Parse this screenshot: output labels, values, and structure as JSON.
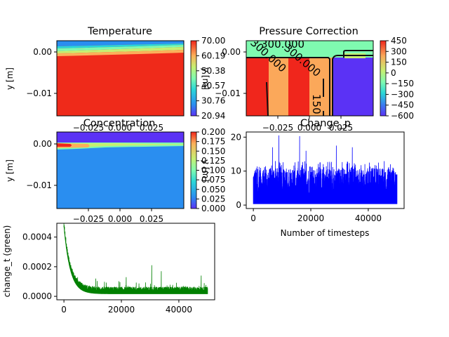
{
  "chart_data": [
    {
      "type": "heatmap",
      "title": "Temperature",
      "xlabel": "",
      "ylabel": "y [m]",
      "x_range": [
        -0.05,
        0.05
      ],
      "y_range": [
        -0.015,
        0.003
      ],
      "x_ticks": [],
      "y_ticks": [
        "0.00",
        "−0.01"
      ],
      "colorbar": {
        "label": "y [m]",
        "ticks": [
          "70.00",
          "60.19",
          "50.38",
          "40.57",
          "30.76",
          "20.94"
        ],
        "range": [
          20.94,
          70.0
        ]
      }
    },
    {
      "type": "heatmap",
      "title": "Pressure Correction",
      "xlabel": "",
      "ylabel": "",
      "x_range": [
        -0.05,
        0.05
      ],
      "y_range": [
        -0.015,
        0.003
      ],
      "x_ticks": [
        "−0.025",
        "0.000",
        "0.025"
      ],
      "y_ticks": [
        "0.00",
        "−0.01"
      ],
      "contour_labels": [
        "300.000",
        "300.000",
        "150",
        "300.000"
      ],
      "colorbar": {
        "label": "",
        "ticks": [
          "450",
          "300",
          "150",
          "0",
          "−150",
          "−300",
          "−450",
          "−600"
        ],
        "range": [
          -600,
          450
        ]
      }
    },
    {
      "type": "heatmap",
      "title": "Concentration",
      "xlabel": "",
      "ylabel": "y [m]",
      "x_range": [
        -0.05,
        0.05
      ],
      "y_range": [
        -0.015,
        0.003
      ],
      "x_ticks": [
        "−0.025",
        "0.000",
        "0.025"
      ],
      "y_ticks": [
        "0.00",
        "−0.01"
      ],
      "colorbar": {
        "label": "y [m]",
        "ticks": [
          "0.200",
          "0.175",
          "0.150",
          "0.125",
          "0.100",
          "0.075",
          "0.050",
          "0.025",
          "0.000"
        ],
        "range": [
          0.0,
          0.2
        ]
      }
    },
    {
      "type": "line",
      "title": "Change_p",
      "xlabel": "Number of timesteps",
      "ylabel": "",
      "color": "#0000ff",
      "xlim": [
        0,
        50000
      ],
      "ylim": [
        0,
        20.5
      ],
      "x_ticks": [
        0,
        20000,
        40000
      ],
      "y_ticks": [
        0,
        10,
        20
      ],
      "series_summary": "noisy signal, baseline ~0.5, peaks typically 8–12, occasional spikes up to ~20.5"
    },
    {
      "type": "line",
      "title": "",
      "xlabel": "",
      "ylabel": "change_t (green)",
      "color": "#008000",
      "xlim": [
        0,
        50000
      ],
      "ylim": [
        0,
        0.00047
      ],
      "x_ticks": [
        0,
        20000,
        40000
      ],
      "y_ticks": [
        "0.0000",
        "0.0002",
        "0.0004"
      ],
      "series_summary": "starts at ~0.00046, decays rapidly to ~0.00005 by 8000 steps, then noisy ~0.00003 with spikes up to ~0.00021"
    }
  ]
}
